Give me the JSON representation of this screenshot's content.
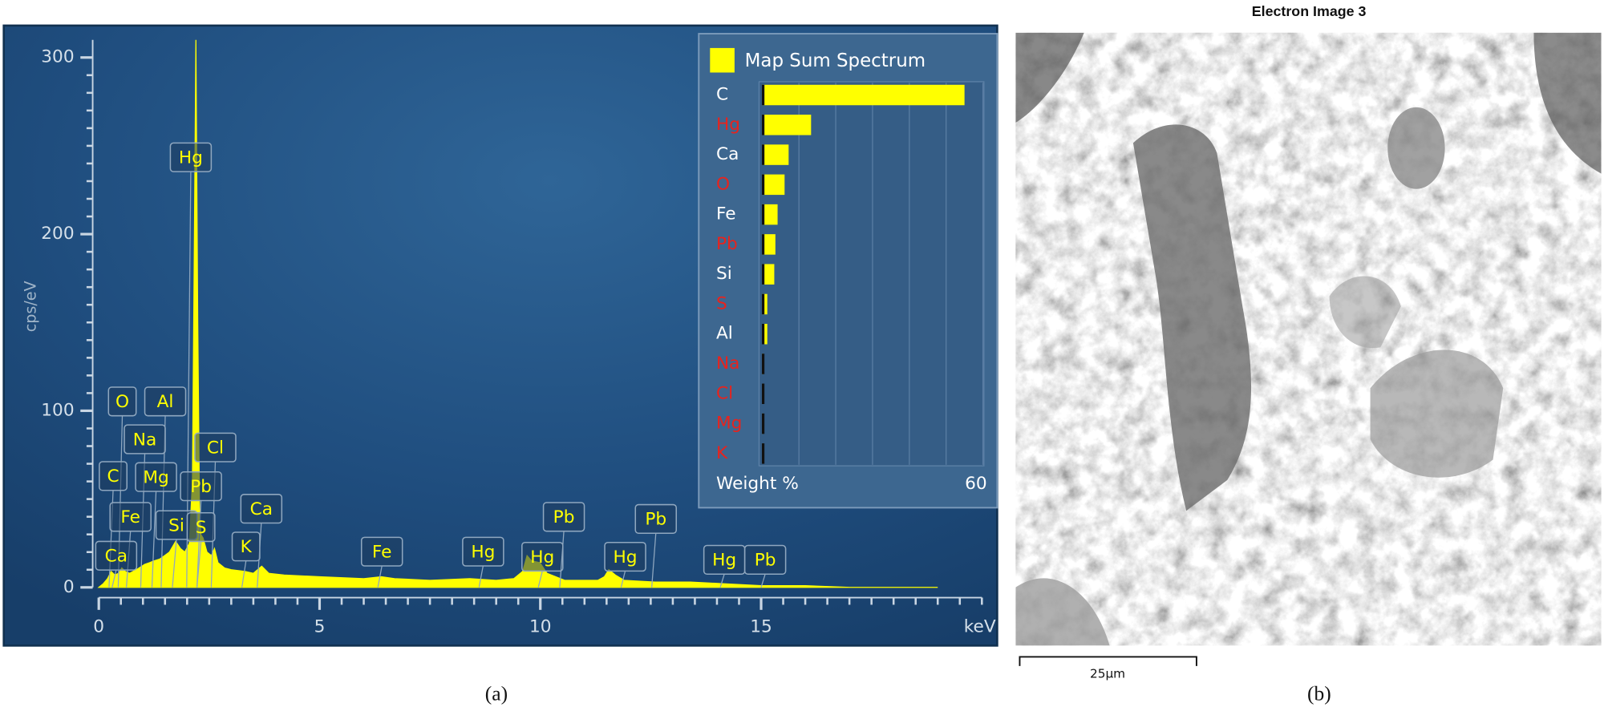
{
  "chart_data": [
    {
      "type": "area",
      "x": [
        0,
        0.1,
        0.2,
        0.28,
        0.36,
        0.45,
        0.52,
        0.6,
        0.7,
        0.85,
        1.04,
        1.15,
        1.25,
        1.38,
        1.49,
        1.6,
        1.74,
        1.85,
        1.95,
        2.05,
        2.12,
        2.16,
        2.2,
        2.24,
        2.28,
        2.31,
        2.36,
        2.45,
        2.55,
        2.62,
        2.7,
        2.85,
        3.0,
        3.31,
        3.5,
        3.69,
        3.85,
        4.2,
        5,
        6,
        6.4,
        6.7,
        7.5,
        8.4,
        9,
        9.4,
        9.6,
        9.7,
        9.8,
        9.99,
        10.15,
        10.55,
        11,
        11.3,
        11.45,
        11.55,
        11.7,
        11.9,
        12.6,
        13.4,
        14.2,
        15,
        16,
        17,
        18,
        19
      ],
      "series": [
        {
          "name": "Map Sum Spectrum",
          "color": "#ffff00",
          "values": [
            0,
            2,
            5,
            9,
            7,
            8,
            11,
            9,
            8,
            10,
            13,
            14,
            15,
            16,
            18,
            20,
            26,
            22,
            20,
            25,
            60,
            180,
            310,
            150,
            45,
            30,
            28,
            20,
            18,
            22,
            14,
            11,
            10,
            9,
            8,
            12,
            8,
            7,
            6,
            5,
            6,
            5,
            4,
            5,
            4,
            5,
            9,
            18,
            15,
            14,
            8,
            4,
            4,
            4,
            6,
            10,
            7,
            4,
            3,
            3,
            2,
            1,
            1,
            0,
            0,
            0
          ]
        }
      ],
      "xlabel": "keV",
      "ylabel": "cps/eV",
      "xlim": [
        0,
        20
      ],
      "xticks": [
        0,
        5,
        10,
        15
      ],
      "ylim": [
        0,
        310
      ],
      "yticks": [
        0,
        100,
        200,
        300
      ],
      "peak_labels": [
        "Hg",
        "O",
        "Al",
        "Na",
        "Cl",
        "C",
        "Mg",
        "Pb",
        "Fe",
        "Si",
        "S",
        "Ca",
        "K",
        "Ca",
        "Fe",
        "Hg",
        "Hg",
        "Pb",
        "Hg",
        "Pb",
        "Hg",
        "Pb"
      ]
    },
    {
      "type": "barh",
      "categories": [
        "C",
        "Hg",
        "Ca",
        "O",
        "Fe",
        "Pb",
        "Si",
        "S",
        "Al",
        "Na",
        "Cl",
        "Mg",
        "K"
      ],
      "category_colors": [
        "#ffffff",
        "#e8231d",
        "#ffffff",
        "#e8231d",
        "#ffffff",
        "#e8231d",
        "#ffffff",
        "#e8231d",
        "#ffffff",
        "#e8231d",
        "#e8231d",
        "#e8231d",
        "#e8231d"
      ],
      "values": [
        55,
        13.3,
        7.2,
        6.1,
        4.2,
        3.6,
        3.3,
        1.4,
        1.4,
        0.3,
        0.2,
        0.2,
        0.1
      ],
      "color": "#ffff00",
      "xlabel": "Weight %",
      "xlim": [
        0,
        60
      ],
      "xticks": [
        60
      ]
    }
  ],
  "image": {
    "title": "Electron Image 3",
    "scale_bar": "25µm"
  },
  "captions": [
    "(a)",
    "(b)"
  ]
}
